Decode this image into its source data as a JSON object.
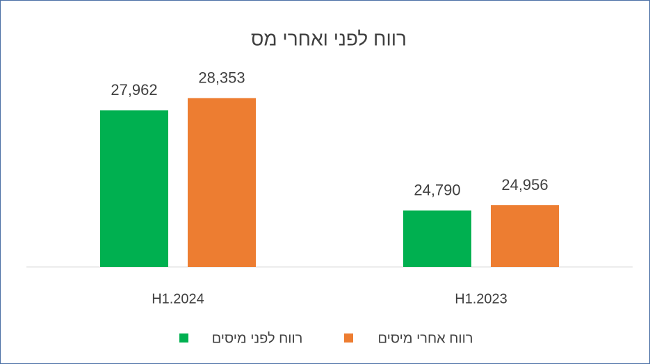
{
  "chart_data": {
    "type": "bar",
    "title": "רווח לפני ואחרי מס",
    "categories": [
      "H1.2024",
      "H1.2023"
    ],
    "series": [
      {
        "name": "רווח לפני מיסים",
        "color": "#00b050",
        "values": [
          27962,
          24790
        ],
        "value_labels": [
          "27,962",
          "24,790"
        ]
      },
      {
        "name": "רווח אחרי מיסים",
        "color": "#ed7d31",
        "values": [
          28353,
          24956
        ],
        "value_labels": [
          "28,353",
          "24,956"
        ]
      }
    ],
    "ylim": [
      23000,
      29000
    ],
    "grid": false,
    "legend": "bottom"
  }
}
